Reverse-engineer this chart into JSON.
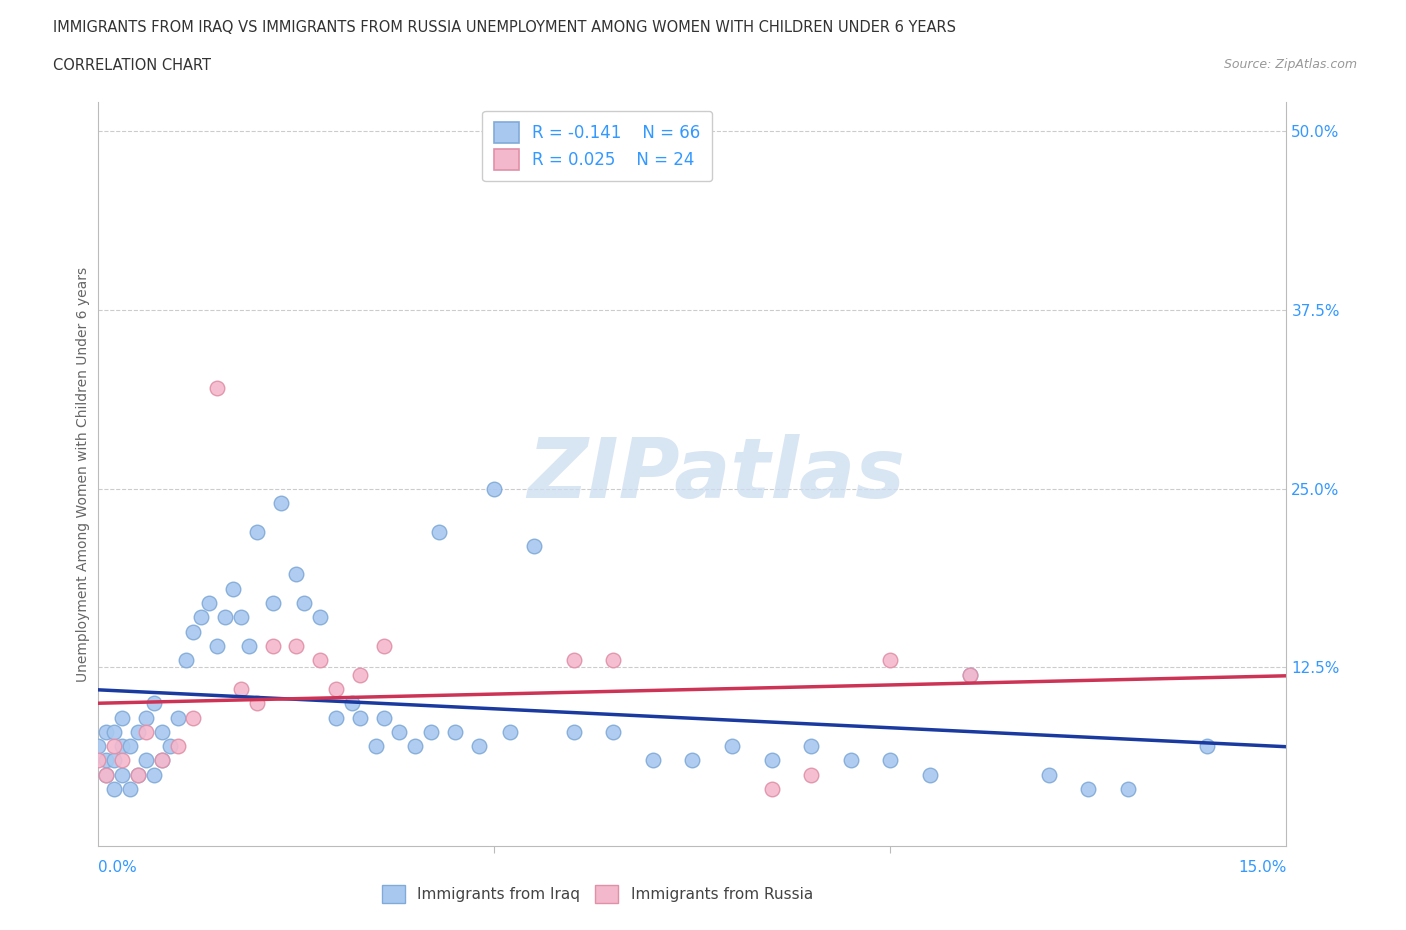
{
  "title_line1": "IMMIGRANTS FROM IRAQ VS IMMIGRANTS FROM RUSSIA UNEMPLOYMENT AMONG WOMEN WITH CHILDREN UNDER 6 YEARS",
  "title_line2": "CORRELATION CHART",
  "source": "Source: ZipAtlas.com",
  "ylabel": "Unemployment Among Women with Children Under 6 years",
  "watermark": "ZIPatlas",
  "iraq_color": "#a8c8f0",
  "iraq_edge_color": "#80aad8",
  "russia_color": "#f4b8cc",
  "russia_edge_color": "#e090a8",
  "iraq_line_color": "#1a3a9f",
  "russia_line_color": "#cc3355",
  "legend_iraq_label": "Immigrants from Iraq",
  "legend_russia_label": "Immigrants from Russia",
  "iraq_R": -0.141,
  "iraq_N": 66,
  "russia_R": 0.025,
  "russia_N": 24,
  "axis_label_color": "#3399ff",
  "title_color": "#333333",
  "xlim": [
    0.0,
    0.15
  ],
  "ylim": [
    0.0,
    0.52
  ],
  "ytick_vals": [
    0.0,
    0.125,
    0.25,
    0.375,
    0.5
  ],
  "ytick_labels": [
    "",
    "12.5%",
    "25.0%",
    "37.5%",
    "50.0%"
  ],
  "iraq_x": [
    0.0,
    0.001,
    0.001,
    0.001,
    0.002,
    0.002,
    0.002,
    0.003,
    0.003,
    0.003,
    0.004,
    0.004,
    0.005,
    0.005,
    0.006,
    0.006,
    0.007,
    0.007,
    0.008,
    0.008,
    0.009,
    0.01,
    0.011,
    0.012,
    0.013,
    0.014,
    0.015,
    0.016,
    0.017,
    0.018,
    0.019,
    0.02,
    0.022,
    0.023,
    0.025,
    0.026,
    0.028,
    0.03,
    0.032,
    0.033,
    0.035,
    0.036,
    0.038,
    0.04,
    0.042,
    0.043,
    0.045,
    0.048,
    0.05,
    0.052,
    0.055,
    0.06,
    0.065,
    0.07,
    0.075,
    0.08,
    0.085,
    0.09,
    0.095,
    0.1,
    0.105,
    0.11,
    0.12,
    0.125,
    0.13,
    0.14
  ],
  "iraq_y": [
    0.07,
    0.05,
    0.06,
    0.08,
    0.04,
    0.06,
    0.08,
    0.05,
    0.07,
    0.09,
    0.04,
    0.07,
    0.05,
    0.08,
    0.06,
    0.09,
    0.05,
    0.1,
    0.06,
    0.08,
    0.07,
    0.09,
    0.13,
    0.15,
    0.16,
    0.17,
    0.14,
    0.16,
    0.18,
    0.16,
    0.14,
    0.22,
    0.17,
    0.24,
    0.19,
    0.17,
    0.16,
    0.09,
    0.1,
    0.09,
    0.07,
    0.09,
    0.08,
    0.07,
    0.08,
    0.22,
    0.08,
    0.07,
    0.25,
    0.08,
    0.21,
    0.08,
    0.08,
    0.06,
    0.06,
    0.07,
    0.06,
    0.07,
    0.06,
    0.06,
    0.05,
    0.12,
    0.05,
    0.04,
    0.04,
    0.07
  ],
  "russia_x": [
    0.0,
    0.001,
    0.002,
    0.003,
    0.005,
    0.006,
    0.008,
    0.01,
    0.012,
    0.015,
    0.018,
    0.02,
    0.022,
    0.025,
    0.028,
    0.03,
    0.033,
    0.036,
    0.06,
    0.065,
    0.085,
    0.09,
    0.1,
    0.11
  ],
  "russia_y": [
    0.06,
    0.05,
    0.07,
    0.06,
    0.05,
    0.08,
    0.06,
    0.07,
    0.09,
    0.32,
    0.11,
    0.1,
    0.14,
    0.14,
    0.13,
    0.11,
    0.12,
    0.14,
    0.13,
    0.13,
    0.04,
    0.05,
    0.13,
    0.12
  ]
}
